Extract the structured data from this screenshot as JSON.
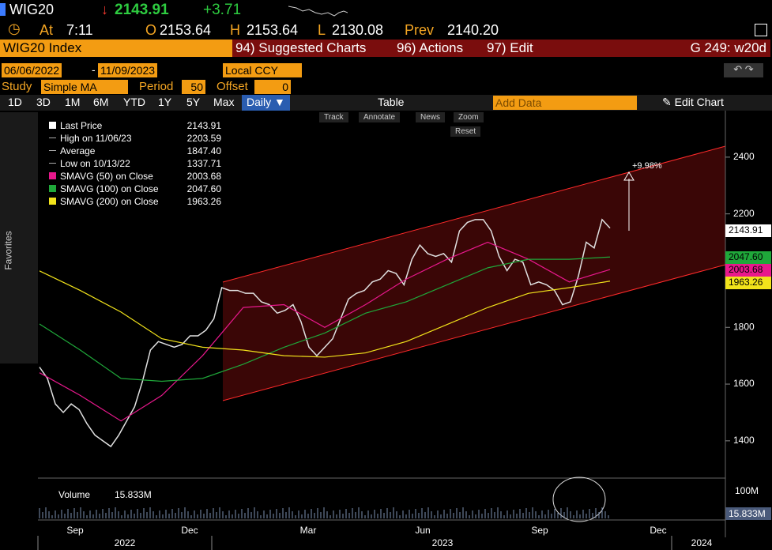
{
  "header": {
    "ticker": "WIG20",
    "price": "2143.91",
    "change": "+3.71",
    "time_label": "At",
    "time": "7:11",
    "open_label": "O",
    "open": "2153.64",
    "high_label": "H",
    "high": "2153.64",
    "low_label": "L",
    "low": "2130.08",
    "prev_label": "Prev",
    "prev": "2140.20"
  },
  "menu": {
    "security": "WIG20 Index",
    "items": [
      "94) Suggested Charts",
      "96) Actions",
      "97) Edit"
    ],
    "right": "G 249: w20d"
  },
  "controls": {
    "start": "06/06/2022",
    "end": "11/09/2023",
    "currency": "Local CCY",
    "study_label": "Study",
    "study": "Simple MA",
    "period_label": "Period",
    "period": "50",
    "offset_label": "Offset",
    "offset": "0",
    "ranges": [
      "1D",
      "3D",
      "1M",
      "6M",
      "YTD",
      "1Y",
      "5Y",
      "Max"
    ],
    "frequency": "Daily",
    "table": "Table",
    "add_data": "Add Data",
    "edit_chart": "Edit Chart"
  },
  "chart_tools": [
    "Track",
    "Annotate",
    "News",
    "Zoom",
    "Reset"
  ],
  "sidebar": {
    "favorites": "Favorites"
  },
  "legend": [
    {
      "name": "Last Price",
      "value": "2143.91",
      "color": "#ffffff"
    },
    {
      "name": "High on 11/06/23",
      "value": "2203.59"
    },
    {
      "name": "Average",
      "value": "1847.40"
    },
    {
      "name": "Low on 10/13/22",
      "value": "1337.71"
    },
    {
      "name": "SMAVG (50)  on Close",
      "value": "2003.68",
      "color": "#e8188c"
    },
    {
      "name": "SMAVG (100)  on Close",
      "value": "2047.60",
      "color": "#1fa83a"
    },
    {
      "name": "SMAVG (200)  on Close",
      "value": "1963.26",
      "color": "#f2e31b"
    }
  ],
  "annotation": "+9.98%",
  "volume": {
    "label": "Volume",
    "value": "15.833M",
    "tick": "100M"
  },
  "chart_data": {
    "type": "line",
    "ylim": [
      1277,
      2564
    ],
    "yticks": [
      1400,
      1600,
      1800,
      2000,
      2200,
      2400
    ],
    "xtick_labels": [
      "Sep",
      "Dec",
      "Mar",
      "Jun",
      "Sep",
      "Dec"
    ],
    "years": [
      "2022",
      "2023",
      "2024"
    ],
    "series": [
      {
        "name": "Last Price",
        "color": "#e0e0e0",
        "values": [
          1660,
          1620,
          1530,
          1500,
          1530,
          1510,
          1460,
          1420,
          1400,
          1380,
          1420,
          1470,
          1520,
          1610,
          1720,
          1750,
          1740,
          1730,
          1740,
          1770,
          1770,
          1790,
          1830,
          1940,
          1930,
          1930,
          1920,
          1920,
          1890,
          1880,
          1850,
          1860,
          1880,
          1820,
          1730,
          1700,
          1730,
          1760,
          1830,
          1900,
          1920,
          1930,
          1960,
          1970,
          2000,
          1990,
          1950,
          2040,
          2090,
          2060,
          2050,
          2060,
          2030,
          2140,
          2170,
          2180,
          2180,
          2140,
          2050,
          2000,
          2040,
          2030,
          1950,
          1960,
          1950,
          1930,
          1880,
          1890,
          1980,
          2100,
          2080,
          2180,
          2150
        ]
      },
      {
        "name": "SMAVG (50)",
        "color": "#e8188c",
        "values": [
          1640,
          1560,
          1470,
          1560,
          1700,
          1870,
          1880,
          1800,
          1880,
          1970,
          2040,
          2100,
          2040,
          1960,
          2004
        ]
      },
      {
        "name": "SMAVG (100)",
        "color": "#1fa83a",
        "values": [
          1812,
          1720,
          1620,
          1610,
          1620,
          1670,
          1730,
          1780,
          1850,
          1890,
          1950,
          2010,
          2040,
          2040,
          2048
        ]
      },
      {
        "name": "SMAVG (200)",
        "color": "#f2e31b",
        "values": [
          1999,
          1930,
          1854,
          1760,
          1730,
          1720,
          1700,
          1695,
          1710,
          1750,
          1810,
          1870,
          1920,
          1940,
          1963
        ]
      }
    ]
  }
}
